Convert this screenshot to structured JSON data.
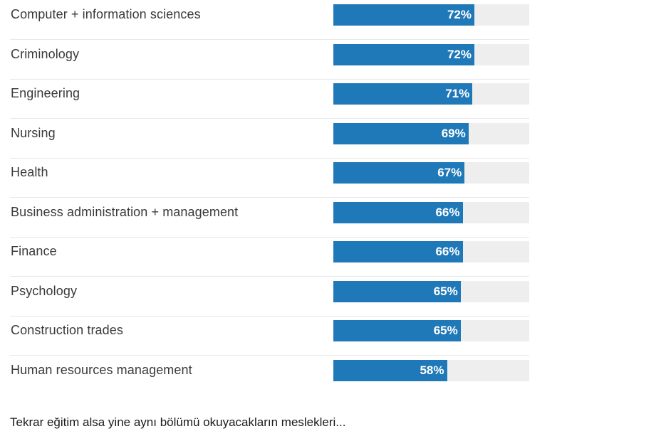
{
  "chart_data": {
    "type": "bar",
    "orientation": "horizontal",
    "categories": [
      "Computer + information sciences",
      "Criminology",
      "Engineering",
      "Nursing",
      "Health",
      "Business administration + management",
      "Finance",
      "Psychology",
      "Construction trades",
      "Human resources management"
    ],
    "values": [
      72,
      72,
      71,
      69,
      67,
      66,
      66,
      65,
      65,
      58
    ],
    "value_labels": [
      "72%",
      "72%",
      "71%",
      "69%",
      "67%",
      "66%",
      "66%",
      "65%",
      "65%",
      "58%"
    ],
    "xlim": [
      0,
      100
    ],
    "unit": "%",
    "title": "",
    "xlabel": "",
    "ylabel": "",
    "grid": false,
    "bar_color": "#1f78b7",
    "track_color": "#eeeeee"
  },
  "caption": "Tekrar eğitim alsa yine aynı bölümü okuyacakların meslekleri..."
}
